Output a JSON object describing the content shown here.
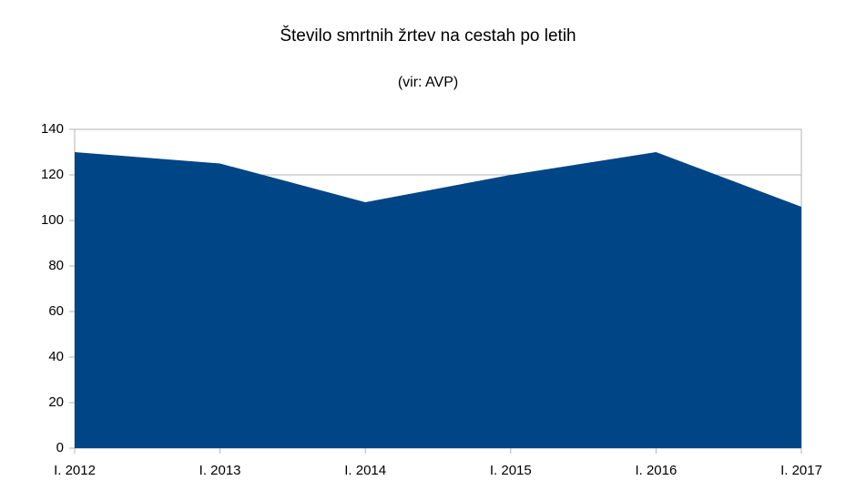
{
  "chart_data": {
    "type": "area",
    "title": "Število smrtnih žrtev na cestah po letih",
    "subtitle": "(vir: AVP)",
    "categories": [
      "I. 2012",
      "I. 2013",
      "I. 2014",
      "I. 2015",
      "I. 2016",
      "I. 2017"
    ],
    "values": [
      130,
      125,
      108,
      120,
      130,
      106
    ],
    "color": "#004586",
    "ylim": [
      0,
      140
    ],
    "yticks": [
      0,
      20,
      40,
      60,
      80,
      100,
      120,
      140
    ],
    "grid": true
  }
}
